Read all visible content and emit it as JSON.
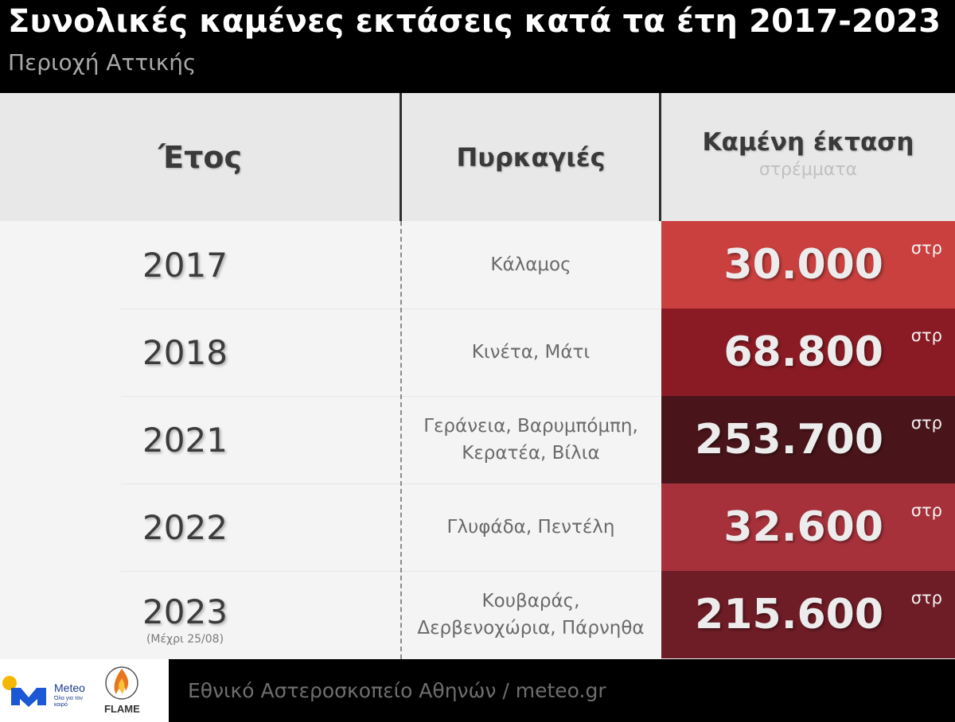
{
  "header": {
    "title": "Συνολικές καμένες εκτάσεις κατά τα έτη 2017-2023",
    "subtitle": "Περιοχή Αττικής"
  },
  "columns": {
    "year": "Έτος",
    "fires": "Πυρκαγιές",
    "area": "Καμένη έκταση",
    "area_unit": "στρέμματα"
  },
  "chart_data": {
    "type": "table",
    "title": "Συνολικές καμένες εκτάσεις κατά τα έτη 2017-2023",
    "subtitle": "Περιοχή Αττικής",
    "columns": [
      "Έτος",
      "Πυρκαγιές",
      "Καμένη έκταση"
    ],
    "unit": "στρέμματα",
    "rows": [
      {
        "year": "2017",
        "note": "",
        "fires": "Κάλαμος",
        "area": 30000,
        "area_label": "30.000",
        "unit": "στρ",
        "color": "#c9403f"
      },
      {
        "year": "2018",
        "note": "",
        "fires": "Κινέτα, Μάτι",
        "area": 68800,
        "area_label": "68.800",
        "unit": "στρ",
        "color": "#8a1b24"
      },
      {
        "year": "2021",
        "note": "",
        "fires": "Γεράνεια, Βαρυμπόμπη,\nΚερατέα, Βίλια",
        "area": 253700,
        "area_label": "253.700",
        "unit": "στρ",
        "color": "#4a151a"
      },
      {
        "year": "2022",
        "note": "",
        "fires": "Γλυφάδα, Πεντέλη",
        "area": 32600,
        "area_label": "32.600",
        "unit": "στρ",
        "color": "#a6313b"
      },
      {
        "year": "2023",
        "note": "(Μέχρι 25/08)",
        "fires": "Κουβαράς,\nΔερβενοχώρια, Πάρνηθα",
        "area": 215600,
        "area_label": "215.600",
        "unit": "στρ",
        "color": "#6e1c26"
      }
    ]
  },
  "footer": {
    "source": "Εθνικό Αστεροσκοπείο Αθηνών / meteo.gr",
    "logo_meteo": "Meteo",
    "logo_meteo_tagline": "Όλα για τον καιρό",
    "logo_flame": "FLAME"
  }
}
